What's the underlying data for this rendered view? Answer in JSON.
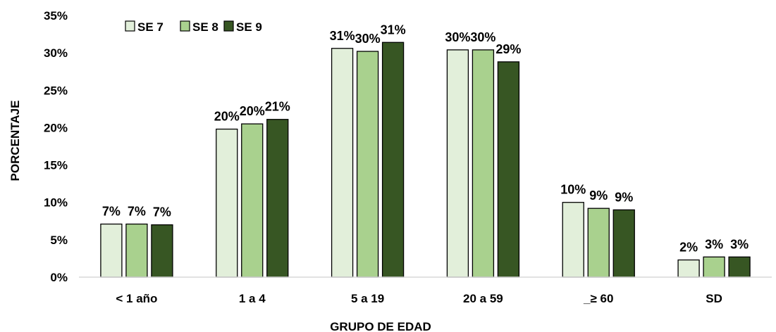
{
  "chart_data": {
    "type": "bar",
    "title": "",
    "xlabel": "GRUPO DE EDAD",
    "ylabel": "PORCENTAJE",
    "categories": [
      "< 1 año",
      "1 a 4",
      "5 a 19",
      "20 a 59",
      "_≥ 60",
      "SD"
    ],
    "series": [
      {
        "name": "SE 7",
        "color": "#e2efda",
        "values": [
          7.1,
          19.8,
          30.6,
          30.4,
          10.0,
          2.3
        ],
        "labels": [
          "7%",
          "20%",
          "31%",
          "30%",
          "10%",
          "2%"
        ]
      },
      {
        "name": "SE 8",
        "color": "#a9d18e",
        "values": [
          7.1,
          20.5,
          30.2,
          30.4,
          9.2,
          2.7
        ],
        "labels": [
          "7%",
          "20%",
          "30%",
          "30%",
          "9%",
          "3%"
        ]
      },
      {
        "name": "SE 9",
        "color": "#375623",
        "values": [
          7.0,
          21.1,
          31.4,
          28.8,
          9.0,
          2.7
        ],
        "labels": [
          "7%",
          "21%",
          "31%",
          "29%",
          "9%",
          "3%"
        ]
      }
    ],
    "ylim": [
      0,
      35
    ],
    "yticks": [
      "0%",
      "5%",
      "10%",
      "15%",
      "20%",
      "25%",
      "30%",
      "35%"
    ],
    "grid": false,
    "legend_position": "top-left"
  }
}
